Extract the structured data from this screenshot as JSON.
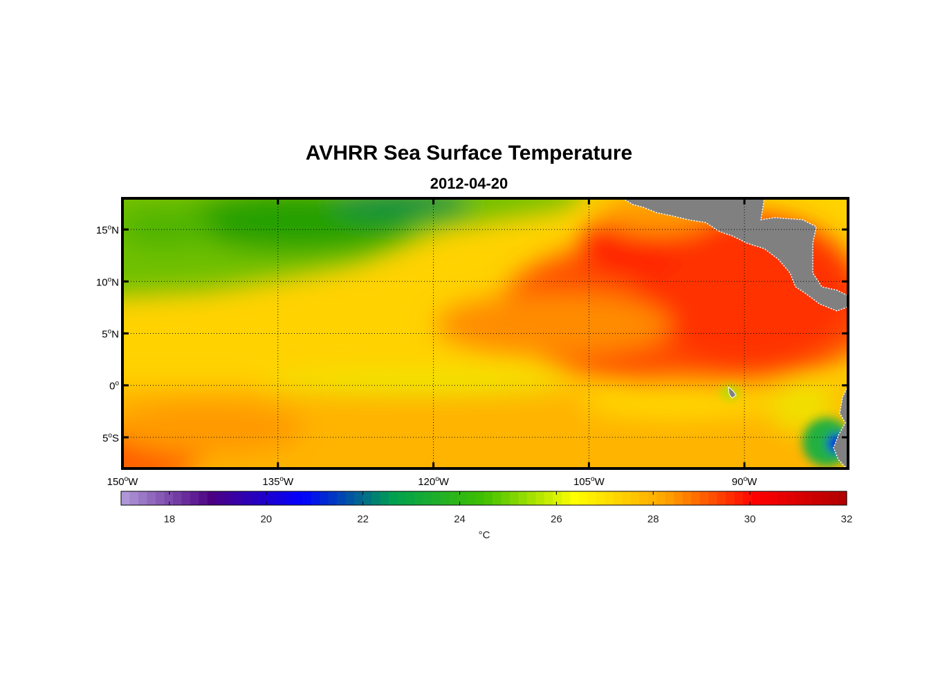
{
  "chart_data": {
    "type": "heatmap",
    "title": "AVHRR Sea Surface Temperature",
    "subtitle": "2012-04-20",
    "map": {
      "lon_range": [
        -150,
        -80
      ],
      "lat_range": [
        -8,
        18
      ],
      "lon_ticks": [
        {
          "value": -150,
          "deg": "150",
          "suffix": "W"
        },
        {
          "value": -135,
          "deg": "135",
          "suffix": "W"
        },
        {
          "value": -120,
          "deg": "120",
          "suffix": "W"
        },
        {
          "value": -105,
          "deg": "105",
          "suffix": "W"
        },
        {
          "value": -90,
          "deg": "90",
          "suffix": "W"
        }
      ],
      "lat_ticks": [
        {
          "value": 15,
          "deg": "15",
          "suffix": "N"
        },
        {
          "value": 10,
          "deg": "10",
          "suffix": "N"
        },
        {
          "value": 5,
          "deg": "5",
          "suffix": "N"
        },
        {
          "value": 0,
          "deg": "0",
          "suffix": ""
        },
        {
          "value": -5,
          "deg": "5",
          "suffix": "S"
        }
      ],
      "grid": true,
      "land_color": "#808080",
      "sst_regions": [
        {
          "region": "north-west (north of 10N, west of 110W)",
          "sst_c": 23.5
        },
        {
          "region": "central band 0-10N",
          "sst_c": 27.0
        },
        {
          "region": "east (east of 105W, 0-15N)",
          "sst_c": 30.0
        },
        {
          "region": "south of equator",
          "sst_c": 27.5
        },
        {
          "region": "Peru coast near 80W 5S",
          "sst_c": 22.5
        }
      ]
    },
    "colorbar": {
      "range": [
        17,
        32
      ],
      "ticks": [
        18,
        20,
        22,
        24,
        26,
        28,
        30,
        32
      ],
      "label": "°C",
      "colors": [
        "#b39ddb",
        "#4b0082",
        "#0000ff",
        "#00a050",
        "#40c000",
        "#ffff00",
        "#ffa500",
        "#ff0000",
        "#b00000"
      ]
    }
  }
}
